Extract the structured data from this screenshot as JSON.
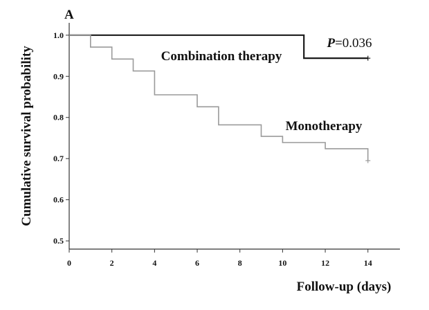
{
  "chart_data": {
    "type": "line",
    "step": true,
    "panel_label": "A",
    "xlabel": "Follow-up (days)",
    "ylabel": "Cumulative survival probability",
    "xlim": [
      0,
      15.5
    ],
    "ylim": [
      0.48,
      1.03
    ],
    "x_ticks": [
      0,
      2,
      4,
      6,
      8,
      10,
      12,
      14
    ],
    "y_ticks": [
      0.5,
      0.6,
      0.7,
      0.8,
      0.9,
      1.0
    ],
    "y_tick_labels": [
      "0.5",
      "0.6",
      "0.7",
      "0.8",
      "0.9",
      "1.0"
    ],
    "grid": false,
    "series": [
      {
        "name": "Combination therapy",
        "color": "#1a1a1a",
        "points": [
          [
            0,
            1.0
          ],
          [
            11,
            1.0
          ],
          [
            11,
            0.944
          ],
          [
            14,
            0.944
          ]
        ],
        "censor_markers": [
          [
            14,
            0.944
          ]
        ]
      },
      {
        "name": "Monotherapy",
        "color": "#9a9a9a",
        "points": [
          [
            0,
            1.0
          ],
          [
            1,
            1.0
          ],
          [
            1,
            0.971
          ],
          [
            2,
            0.971
          ],
          [
            2,
            0.942
          ],
          [
            3,
            0.942
          ],
          [
            3,
            0.913
          ],
          [
            4,
            0.913
          ],
          [
            4,
            0.855
          ],
          [
            6,
            0.855
          ],
          [
            6,
            0.826
          ],
          [
            7,
            0.826
          ],
          [
            7,
            0.782
          ],
          [
            9,
            0.782
          ],
          [
            9,
            0.754
          ],
          [
            10,
            0.754
          ],
          [
            10,
            0.739
          ],
          [
            12,
            0.739
          ],
          [
            12,
            0.724
          ],
          [
            14,
            0.724
          ],
          [
            14,
            0.695
          ]
        ],
        "censor_markers": [
          [
            14,
            0.695
          ]
        ]
      }
    ],
    "annotations": {
      "p_label": "P",
      "p_value": "=0.036"
    }
  }
}
